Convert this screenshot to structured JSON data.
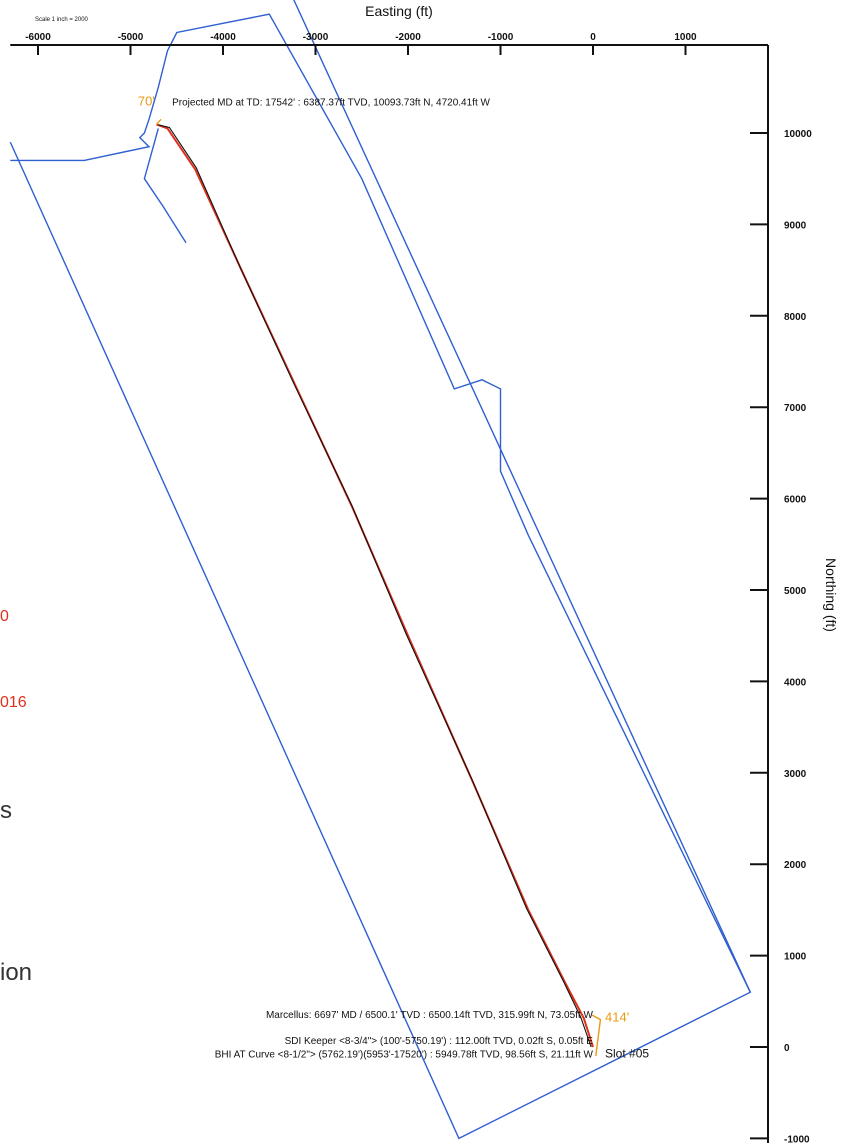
{
  "chart_data": {
    "type": "line",
    "scale_note": "Scale 1 inch = 2000",
    "xlabel": "Easting (ft)",
    "ylabel": "Northing (ft)",
    "x_ticks": [
      -6000,
      -5000,
      -4000,
      -3000,
      -2000,
      -1000,
      0,
      1000
    ],
    "x_tick_labels": [
      "-6000",
      "-5000",
      "-4000",
      "-3000",
      "-2000",
      "-1000",
      "0",
      "1000"
    ],
    "y_ticks": [
      10000,
      9000,
      8000,
      7000,
      6000,
      5000,
      4000,
      3000,
      2000,
      1000,
      0,
      -1000
    ],
    "y_tick_labels": [
      "10000",
      "9000",
      "8000",
      "7000",
      "6000",
      "5000",
      "4000",
      "3000",
      "2000",
      "1000",
      "0",
      "-1000"
    ],
    "xlim": [
      -6300,
      1700
    ],
    "ylim": [
      -1050,
      11600
    ],
    "series": [
      {
        "color": "#e0301c",
        "x": [
          0,
          -100,
          -300,
          -700,
          -1300,
          -2000,
          -2600,
          -3200,
          -3800,
          -4300,
          -4600,
          -4720
        ],
        "y": [
          0,
          315,
          700,
          1500,
          2900,
          4500,
          5900,
          7200,
          8500,
          9600,
          10050,
          10094
        ]
      },
      {
        "color": "#111111",
        "x": [
          -20,
          -130,
          -320,
          -720,
          -1310,
          -2020,
          -2610,
          -3220,
          -3810,
          -4290,
          -4580,
          -4700
        ],
        "y": [
          0,
          320,
          720,
          1520,
          2930,
          4520,
          5930,
          7230,
          8520,
          9620,
          10060,
          10090
        ]
      }
    ],
    "boundaries": [
      {
        "color": "#2f5fd0",
        "x": [
          -3300,
          1700,
          -1450,
          -6300
        ],
        "y": [
          11600,
          600,
          -1000,
          9900
        ]
      },
      {
        "color": "#2f5fd0",
        "x": [
          -6300,
          -5500,
          -4800,
          -4900,
          -4850,
          -4800,
          -4700,
          -4600,
          -4500,
          -4000,
          -3500,
          -2500,
          -1500,
          -1200,
          -1000,
          -1000,
          -700,
          1700
        ],
        "y": [
          9700,
          9700,
          9850,
          9950,
          10000,
          10150,
          10500,
          10900,
          11100,
          11200,
          11300,
          9500,
          7200,
          7300,
          7200,
          6300,
          5600,
          600
        ]
      },
      {
        "color": "#2f5fd0",
        "x": [
          -4700,
          -4850,
          -4650,
          -4400
        ],
        "y": [
          10050,
          9500,
          9200,
          8800
        ]
      }
    ],
    "annotations": [
      {
        "text": "Projected MD at TD: 17542' : 6387.37ft TVD, 10093.73ft N, 4720.41ft W",
        "x": -4550,
        "y": 10300
      },
      {
        "text": "Marcellus: 6697' MD / 6500.1' TVD : 6500.14ft TVD, 315.99ft N, 73.05ft W",
        "x": -1,
        "y": 315
      },
      {
        "text": "SDI Keeper <8-3/4\"> (100'-5750.19') : 112.00ft TVD, 0.02ft S, 0.05ft E",
        "x": -1,
        "y": 35
      },
      {
        "text": "BHI AT Curve <8-1/2\"> (5762.19')(5953'-17520') : 5949.78ft TVD, 98.56ft S, 21.11ft W",
        "x": -1,
        "y": -115
      },
      {
        "text": "Slot #05",
        "x": 130,
        "y": -115
      }
    ],
    "orange_labels": [
      {
        "text": "70'",
        "x": -4920,
        "y": 10300
      },
      {
        "text": "414'",
        "x": 130,
        "y": 280
      }
    ],
    "grid": false
  },
  "side_text": {
    "red_1": "0",
    "red_2": "016",
    "dark_1": "s",
    "dark_2": "ion"
  }
}
